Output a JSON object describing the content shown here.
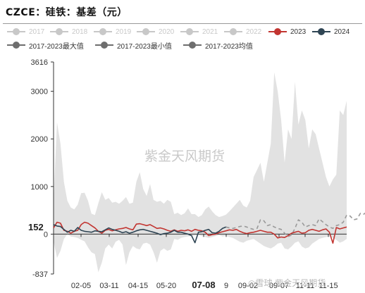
{
  "title": "CZCE：硅铁：基差（元）",
  "watermark": "紫金天风期货",
  "footer_watermark": "◎雪球   紫金天风期货",
  "legend": [
    {
      "label": "2017",
      "color": "#c8c8c8",
      "active": false
    },
    {
      "label": "2018",
      "color": "#c8c8c8",
      "active": false
    },
    {
      "label": "2019",
      "color": "#c8c8c8",
      "active": false
    },
    {
      "label": "2020",
      "color": "#c8c8c8",
      "active": false
    },
    {
      "label": "2021",
      "color": "#c8c8c8",
      "active": false
    },
    {
      "label": "2022",
      "color": "#c8c8c8",
      "active": false
    },
    {
      "label": "2023",
      "color": "#c23531",
      "active": true
    },
    {
      "label": "2024",
      "color": "#2f4554",
      "active": true
    },
    {
      "label": "2017-2023最大值",
      "color": "#6e6e6e",
      "active": true
    },
    {
      "label": "2017-2023最小值",
      "color": "#6e6e6e",
      "active": true
    },
    {
      "label": "2017-2023均值",
      "color": "#6e6e6e",
      "active": true
    }
  ],
  "chart_data": {
    "type": "line",
    "ylim": [
      -837,
      3616
    ],
    "y_ticks": [
      "3616",
      "3000",
      "2000",
      "1000",
      "0",
      "-837"
    ],
    "x_ticks": [
      "02-05",
      "03-11",
      "04-15",
      "05-20",
      "07-08",
      "9",
      "09-02",
      "09-07",
      "11-11",
      "11-15"
    ],
    "highlight_x": "07-08",
    "highlight_y": "152",
    "series": [
      {
        "name": "2017-2023最大值",
        "style": "band-upper",
        "values": [
          700,
          2350,
          1900,
          1100,
          700,
          560,
          520,
          620,
          860,
          870,
          700,
          430,
          400,
          650,
          880,
          720,
          760,
          660,
          680,
          640,
          700,
          780,
          640,
          660,
          1100,
          1300,
          950,
          800,
          1050,
          720,
          680,
          700,
          640,
          720,
          680,
          420,
          450,
          400,
          440,
          540,
          420,
          420,
          360,
          400,
          520,
          580,
          480,
          400,
          360,
          380,
          410,
          480,
          560,
          640,
          720,
          600,
          560,
          700,
          1200,
          1350,
          1500,
          1100,
          1500,
          1900,
          3400,
          3000,
          2400,
          1500,
          2200,
          2000,
          3200,
          2300,
          2600,
          2400,
          1800,
          2200,
          2100,
          1800,
          1500,
          1200,
          1000,
          1150,
          1250,
          2600,
          2500,
          2800
        ]
      },
      {
        "name": "2017-2023最小值",
        "style": "band-lower",
        "values": [
          -150,
          -500,
          -350,
          -100,
          0,
          -50,
          -60,
          -80,
          -120,
          -150,
          -280,
          -380,
          -420,
          -800,
          -600,
          -300,
          -220,
          -300,
          -160,
          -120,
          -220,
          -650,
          -380,
          -250,
          -300,
          -320,
          -200,
          -180,
          -220,
          -380,
          -600,
          -350,
          -300,
          -350,
          -320,
          -100,
          -120,
          -80,
          -60,
          -50,
          -40,
          -30,
          -20,
          -40,
          -60,
          -80,
          -60,
          -40,
          -20,
          -50,
          -40,
          -60,
          -80,
          -120,
          -160,
          -180,
          -140,
          -120,
          -100,
          -150,
          -200,
          -250,
          -280,
          -300,
          -260,
          -200,
          -180,
          -300,
          -320,
          -260,
          -180,
          -150,
          -260,
          -300,
          -280,
          -200,
          -150,
          -100,
          -80,
          -60,
          -50,
          -80,
          -120,
          -180,
          -150,
          -100
        ]
      },
      {
        "name": "2023",
        "color": "#c23531",
        "values": [
          130,
          250,
          230,
          80,
          60,
          20,
          60,
          80,
          200,
          250,
          230,
          180,
          130,
          60,
          20,
          80,
          100,
          70,
          90,
          110,
          120,
          140,
          110,
          90,
          210,
          220,
          200,
          180,
          200,
          160,
          120,
          130,
          110,
          80,
          60,
          90,
          60,
          80,
          70,
          90,
          60,
          100,
          80,
          70,
          40,
          -30,
          -10,
          0,
          30,
          50,
          70,
          90,
          80,
          100,
          60,
          30,
          10,
          30,
          40,
          60,
          80,
          60,
          40,
          40,
          0,
          -80,
          -60,
          -70,
          -30,
          20,
          40,
          60,
          20,
          30,
          80,
          100,
          80,
          60,
          90,
          110,
          40,
          -190,
          140,
          110,
          130,
          150
        ]
      },
      {
        "name": "2024",
        "color": "#2f4554",
        "values": [
          200,
          170,
          160,
          100,
          40,
          80,
          60,
          140,
          80,
          60,
          50,
          40,
          70,
          60,
          50,
          90,
          130,
          100,
          80,
          60,
          30,
          50,
          20,
          40,
          70,
          90,
          100,
          80,
          60,
          40,
          20,
          -10,
          10,
          20,
          40,
          80,
          40,
          40,
          20,
          0,
          -30,
          -180,
          40,
          50,
          80,
          100,
          30,
          20,
          60,
          120,
          150
        ]
      },
      {
        "name": "2017-2023均值",
        "color": "#9a9a9a",
        "style": "dashed",
        "start_index": 50,
        "values": [
          150,
          130,
          120,
          140,
          160,
          170,
          150,
          120,
          100,
          120,
          300,
          280,
          180,
          200,
          150,
          120,
          100,
          20,
          -50,
          -20,
          120,
          300,
          250,
          150,
          180,
          200,
          180,
          320,
          260,
          200,
          150,
          120,
          180,
          200,
          250,
          400,
          380,
          300,
          320,
          440,
          420,
          480,
          460
        ]
      }
    ]
  }
}
